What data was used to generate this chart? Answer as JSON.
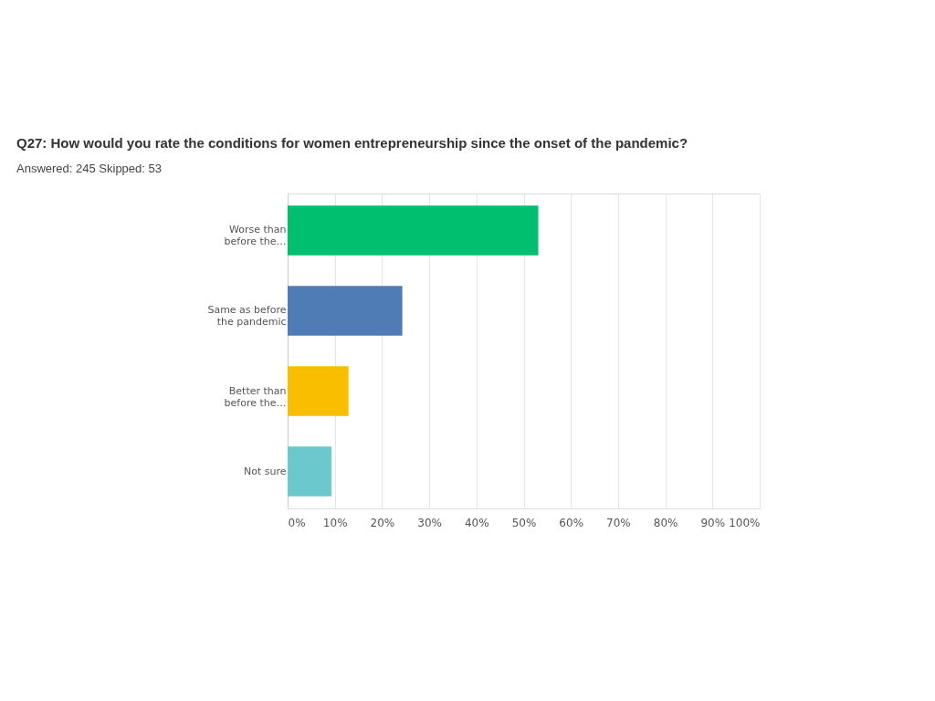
{
  "chart_data": {
    "type": "bar",
    "orientation": "horizontal",
    "title": "Q27: How would you rate the conditions for women entrepreneurship since the onset of the pandemic?",
    "subtitle": "Answered: 245    Skipped: 53",
    "categories": [
      "Worse than before the…",
      "Same as before the pandemic",
      "Better than before the…",
      "Not sure"
    ],
    "values": [
      53.1,
      24.3,
      12.9,
      9.3
    ],
    "colors": [
      "#00bf6f",
      "#507cb6",
      "#f9be00",
      "#6bc8cd"
    ],
    "xlim": [
      0,
      100
    ],
    "xticks": [
      {
        "value": 0,
        "label": "0%"
      },
      {
        "value": 10,
        "label": "10%"
      },
      {
        "value": 20,
        "label": "20%"
      },
      {
        "value": 30,
        "label": "30%"
      },
      {
        "value": 40,
        "label": "40%"
      },
      {
        "value": 50,
        "label": "50%"
      },
      {
        "value": 60,
        "label": "60%"
      },
      {
        "value": 70,
        "label": "70%"
      },
      {
        "value": 80,
        "label": "80%"
      },
      {
        "value": 90,
        "label": "90%"
      },
      {
        "value": 100,
        "label": "100%"
      }
    ],
    "grid": "x"
  }
}
